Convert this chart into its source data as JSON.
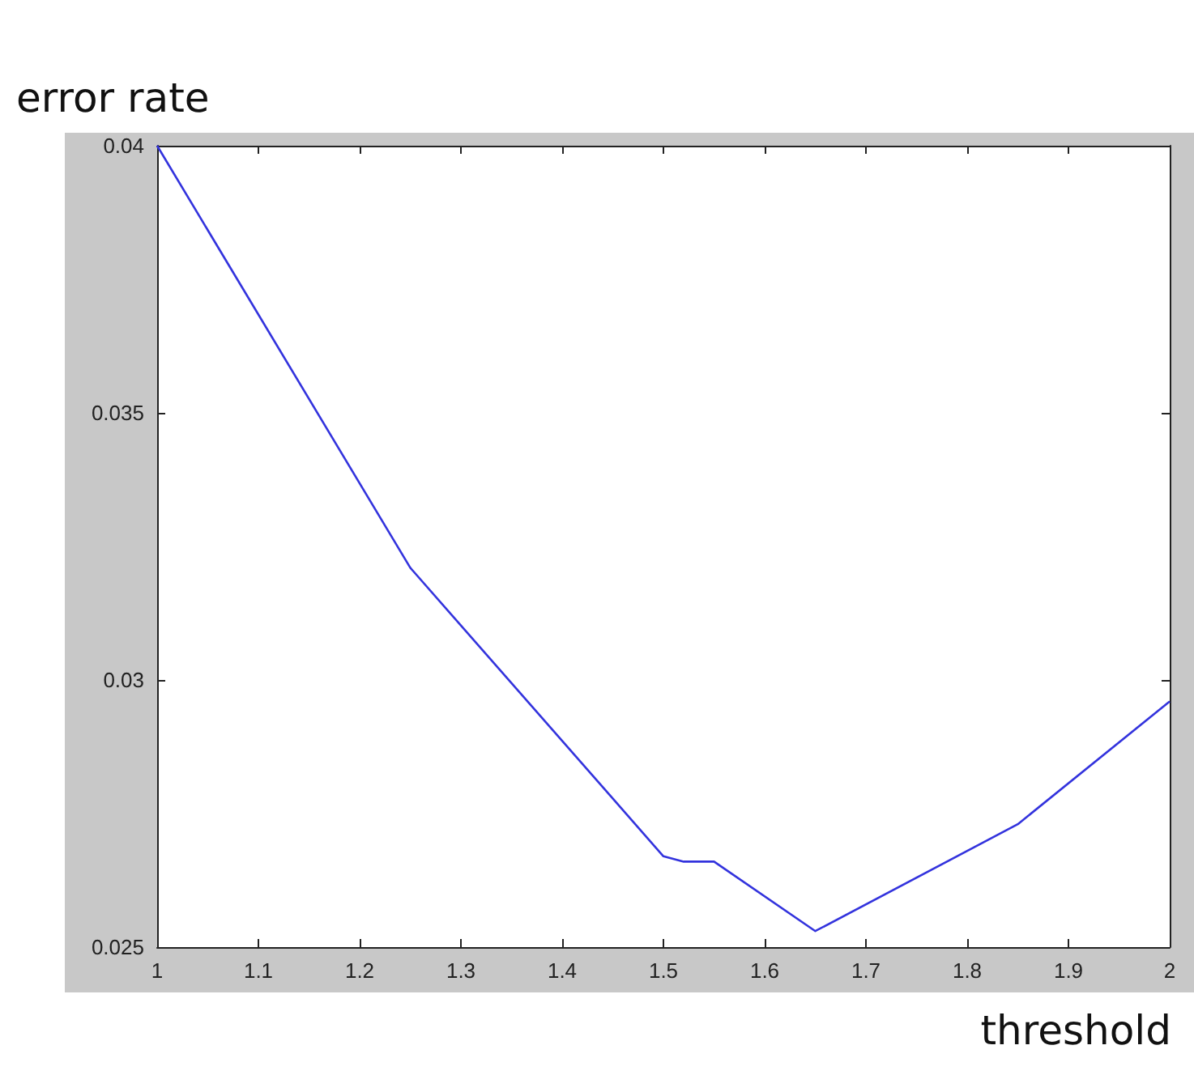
{
  "chart_data": {
    "type": "line",
    "xlabel": "threshold",
    "ylabel": "error rate",
    "series": [
      {
        "color": "#3333dd",
        "x": [
          1,
          1.25,
          1.5,
          1.52,
          1.55,
          1.65,
          1.85,
          2
        ],
        "values": [
          0.04,
          0.0321,
          0.0267,
          0.0266,
          0.0266,
          0.0253,
          0.0273,
          0.0296
        ]
      }
    ],
    "xlim": [
      1,
      2
    ],
    "xticks": [
      1,
      1.1,
      1.2,
      1.3,
      1.4,
      1.5,
      1.6,
      1.7,
      1.8,
      1.9,
      2
    ],
    "ylim": [
      0.025,
      0.04
    ],
    "yticks": [
      0.025,
      0.03,
      0.035,
      0.04
    ],
    "grid": false,
    "marker": "none",
    "line_style": "solid"
  }
}
